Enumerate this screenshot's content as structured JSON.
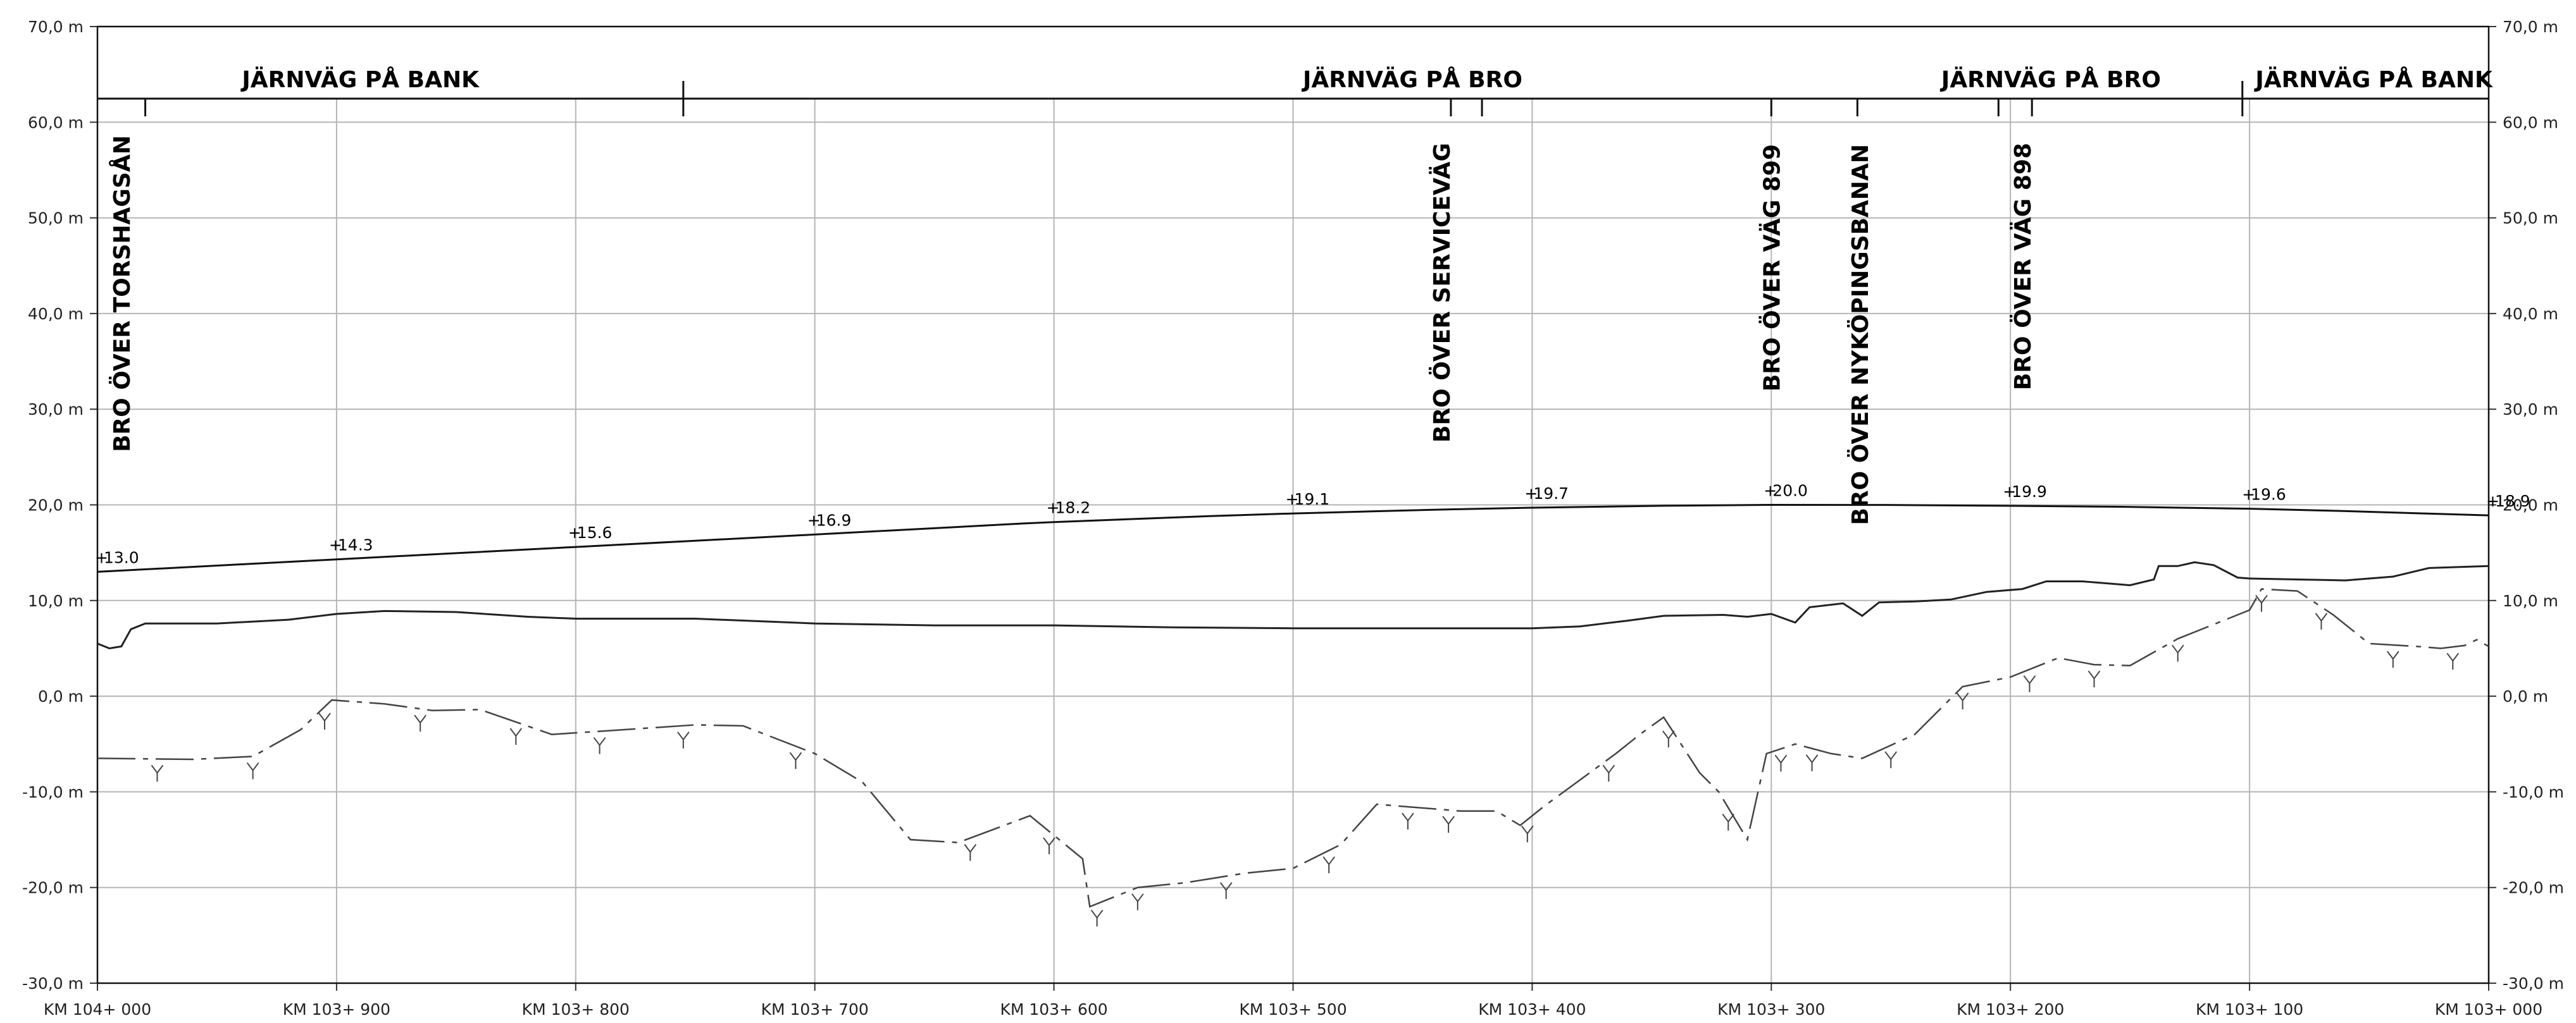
{
  "drawing": {
    "y_axis": {
      "ticks": [
        {
          "value": 70,
          "label": "70,0 m"
        },
        {
          "value": 60,
          "label": "60,0 m"
        },
        {
          "value": 50,
          "label": "50,0 m"
        },
        {
          "value": 40,
          "label": "40,0 m"
        },
        {
          "value": 30,
          "label": "30,0 m"
        },
        {
          "value": 20,
          "label": "20,0 m"
        },
        {
          "value": 10,
          "label": "10,0 m"
        },
        {
          "value": 0,
          "label": "0,0 m"
        },
        {
          "value": -10,
          "label": "-10,0 m"
        },
        {
          "value": -20,
          "label": "-20,0 m"
        },
        {
          "value": -30,
          "label": "-30,0 m"
        }
      ]
    },
    "x_axis": {
      "ticks": [
        {
          "value": 104000,
          "label": "KM 104+ 000"
        },
        {
          "value": 103900,
          "label": "KM 103+ 900"
        },
        {
          "value": 103800,
          "label": "KM 103+ 800"
        },
        {
          "value": 103700,
          "label": "KM 103+ 700"
        },
        {
          "value": 103600,
          "label": "KM 103+ 600"
        },
        {
          "value": 103500,
          "label": "KM 103+ 500"
        },
        {
          "value": 103400,
          "label": "KM 103+ 400"
        },
        {
          "value": 103300,
          "label": "KM 103+ 300"
        },
        {
          "value": 103200,
          "label": "KM 103+ 200"
        },
        {
          "value": 103100,
          "label": "KM 103+ 100"
        },
        {
          "value": 103000,
          "label": "KM 103+ 000"
        }
      ]
    },
    "sections": [
      {
        "label": "JÄRNVÄG PÅ BANK",
        "from": 104000,
        "to": 103755
      },
      {
        "label": "JÄRNVÄG PÅ BRO",
        "from": 103755,
        "to": 103103
      },
      {
        "label": "JÄRNVÄG PÅ BANK",
        "from": 103103,
        "to": 103000
      }
    ],
    "section_label_2": "JÄRNVÄG PÅ BRO",
    "section_dividers": [
      103755,
      103103
    ],
    "bridge_marks": [
      103980,
      103434,
      103421,
      103300,
      103264,
      103205,
      103191
    ],
    "bridges": [
      {
        "label": "BRO ÖVER TORSHAGSÅN",
        "at": 103990
      },
      {
        "label": "BRO ÖVER SERVICEVÄG",
        "at": 103438
      },
      {
        "label": "BRO ÖVER VÄG 899",
        "at": 103300
      },
      {
        "label": "BRO ÖVER NYKÖPINGSBANAN",
        "at": 103263
      },
      {
        "label": "BRO ÖVER VÄG 898",
        "at": 103195
      }
    ],
    "track_elevations": [
      {
        "km": 104000,
        "label": "13.0",
        "value": 13.0
      },
      {
        "km": 103900,
        "label": "14.3",
        "value": 14.3
      },
      {
        "km": 103800,
        "label": "15.6",
        "value": 15.6
      },
      {
        "km": 103700,
        "label": "16.9",
        "value": 16.9
      },
      {
        "km": 103600,
        "label": "18.2",
        "value": 18.2
      },
      {
        "km": 103500,
        "label": "19.1",
        "value": 19.1
      },
      {
        "km": 103400,
        "label": "19.7",
        "value": 19.7
      },
      {
        "km": 103300,
        "label": "20.0",
        "value": 20.0
      },
      {
        "km": 103200,
        "label": "19.9",
        "value": 19.9
      },
      {
        "km": 103100,
        "label": "19.6",
        "value": 19.6
      },
      {
        "km": 103000,
        "label": "18.9",
        "value": 18.9
      }
    ],
    "ground_profile": [
      [
        104000,
        5.5
      ],
      [
        103995,
        5.0
      ],
      [
        103990,
        5.2
      ],
      [
        103986,
        7.0
      ],
      [
        103980,
        7.6
      ],
      [
        103950,
        7.6
      ],
      [
        103920,
        8.0
      ],
      [
        103900,
        8.6
      ],
      [
        103880,
        8.9
      ],
      [
        103850,
        8.8
      ],
      [
        103820,
        8.3
      ],
      [
        103800,
        8.1
      ],
      [
        103750,
        8.1
      ],
      [
        103700,
        7.6
      ],
      [
        103650,
        7.4
      ],
      [
        103600,
        7.4
      ],
      [
        103550,
        7.2
      ],
      [
        103500,
        7.1
      ],
      [
        103450,
        7.1
      ],
      [
        103400,
        7.1
      ],
      [
        103380,
        7.3
      ],
      [
        103360,
        7.9
      ],
      [
        103345,
        8.4
      ],
      [
        103320,
        8.5
      ],
      [
        103310,
        8.3
      ],
      [
        103300,
        8.6
      ],
      [
        103290,
        7.7
      ],
      [
        103284,
        9.3
      ],
      [
        103270,
        9.7
      ],
      [
        103262,
        8.4
      ],
      [
        103255,
        9.8
      ],
      [
        103240,
        9.9
      ],
      [
        103225,
        10.1
      ],
      [
        103210,
        10.9
      ],
      [
        103195,
        11.2
      ],
      [
        103185,
        12.0
      ],
      [
        103170,
        12.0
      ],
      [
        103150,
        11.6
      ],
      [
        103140,
        12.2
      ],
      [
        103138,
        13.6
      ],
      [
        103130,
        13.6
      ],
      [
        103123,
        14.0
      ],
      [
        103115,
        13.7
      ],
      [
        103105,
        12.4
      ],
      [
        103100,
        12.3
      ],
      [
        103080,
        12.2
      ],
      [
        103060,
        12.1
      ],
      [
        103040,
        12.5
      ],
      [
        103025,
        13.4
      ],
      [
        103000,
        13.6
      ]
    ],
    "rock_profile": [
      [
        104000,
        -6.5
      ],
      [
        103960,
        -6.6
      ],
      [
        103935,
        -6.3
      ],
      [
        103915,
        -3.5
      ],
      [
        103902,
        -0.4
      ],
      [
        103880,
        -0.8
      ],
      [
        103860,
        -1.5
      ],
      [
        103840,
        -1.4
      ],
      [
        103810,
        -4.0
      ],
      [
        103780,
        -3.5
      ],
      [
        103750,
        -3.0
      ],
      [
        103730,
        -3.1
      ],
      [
        103700,
        -6.0
      ],
      [
        103680,
        -9.0
      ],
      [
        103660,
        -15.0
      ],
      [
        103640,
        -15.3
      ],
      [
        103610,
        -12.5
      ],
      [
        103588,
        -17.0
      ],
      [
        103585,
        -22.0
      ],
      [
        103565,
        -20.0
      ],
      [
        103545,
        -19.5
      ],
      [
        103520,
        -18.5
      ],
      [
        103500,
        -18.0
      ],
      [
        103480,
        -15.5
      ],
      [
        103465,
        -11.3
      ],
      [
        103430,
        -12.0
      ],
      [
        103415,
        -12.0
      ],
      [
        103405,
        -13.5
      ],
      [
        103395,
        -11.5
      ],
      [
        103365,
        -6.0
      ],
      [
        103355,
        -4.0
      ],
      [
        103345,
        -2.2
      ],
      [
        103330,
        -8.0
      ],
      [
        103322,
        -10.0
      ],
      [
        103310,
        -15.0
      ],
      [
        103302,
        -6.0
      ],
      [
        103290,
        -5.0
      ],
      [
        103275,
        -6.0
      ],
      [
        103262,
        -6.5
      ],
      [
        103240,
        -4.0
      ],
      [
        103220,
        1.0
      ],
      [
        103200,
        2.0
      ],
      [
        103180,
        4.0
      ],
      [
        103165,
        3.3
      ],
      [
        103150,
        3.2
      ],
      [
        103130,
        6.0
      ],
      [
        103100,
        9.0
      ],
      [
        103095,
        11.2
      ],
      [
        103080,
        11.0
      ],
      [
        103065,
        8.5
      ],
      [
        103050,
        5.5
      ],
      [
        103030,
        5.2
      ],
      [
        103020,
        5.0
      ],
      [
        103010,
        5.3
      ],
      [
        103005,
        5.9
      ],
      [
        103000,
        5.2
      ]
    ],
    "rock_markers": [
      103975,
      103935,
      103905,
      103865,
      103825,
      103790,
      103755,
      103708,
      103635,
      103602,
      103582,
      103565,
      103528,
      103485,
      103452,
      103435,
      103402,
      103368,
      103343,
      103318,
      103296,
      103283,
      103250,
      103220,
      103192,
      103165,
      103130,
      103095,
      103070,
      103040,
      103015
    ]
  }
}
